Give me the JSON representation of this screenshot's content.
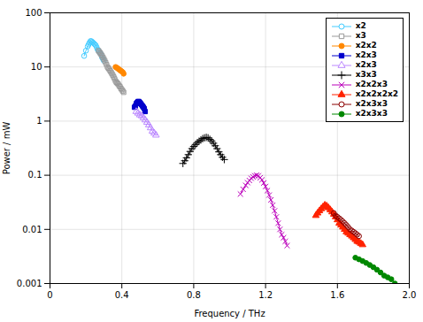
{
  "chart_data": {
    "type": "line",
    "xlabel": "Frequency / THz",
    "ylabel": "Power / mW",
    "log": "y",
    "grid": true,
    "legend": "upper right",
    "xlim": [
      0,
      2.0
    ],
    "xticks": [
      0,
      0.4,
      0.8,
      1.2,
      1.6,
      {
        "value": 2.0,
        "label": "2.0"
      }
    ],
    "ylim": [
      0.001,
      100
    ],
    "yticks": [
      0.001,
      0.01,
      0.1,
      1,
      10,
      100
    ],
    "series": [
      {
        "name": "x2",
        "color": "#44CCFF",
        "marker": "circle-open",
        "line_style": "solid",
        "x": [
          0.19,
          0.2,
          0.21,
          0.215,
          0.22,
          0.225,
          0.23,
          0.235,
          0.24,
          0.245,
          0.25,
          0.255,
          0.26,
          0.265,
          0.27,
          0.275,
          0.28,
          0.285,
          0.29,
          0.295,
          0.3
        ],
        "values": [
          16,
          20,
          24,
          26,
          28,
          30,
          30,
          29,
          28,
          27,
          26,
          25,
          23,
          21,
          20,
          19,
          18,
          17,
          15,
          14,
          13
        ]
      },
      {
        "name": "x3",
        "color": "#999999",
        "marker": "square-open",
        "line_style": "solid",
        "x": [
          0.27,
          0.275,
          0.28,
          0.285,
          0.29,
          0.295,
          0.3,
          0.305,
          0.31,
          0.315,
          0.32,
          0.325,
          0.33,
          0.335,
          0.34,
          0.345,
          0.35,
          0.355,
          0.36,
          0.365,
          0.37,
          0.375,
          0.38,
          0.385,
          0.39,
          0.395,
          0.4,
          0.405,
          0.41
        ],
        "values": [
          20,
          19,
          18,
          17,
          16,
          15,
          14,
          13,
          12,
          11,
          10,
          9.5,
          9,
          8.5,
          8,
          7.5,
          7,
          6.5,
          6,
          5.5,
          5.2,
          5.0,
          4.8,
          4.5,
          4.3,
          4.0,
          3.8,
          3.6,
          3.4
        ]
      },
      {
        "name": "x2x2",
        "color": "#FF8800",
        "marker": "circle",
        "line_style": "solid",
        "x": [
          0.365,
          0.37,
          0.375,
          0.38,
          0.385,
          0.39,
          0.395,
          0.4,
          0.405,
          0.41
        ],
        "values": [
          10,
          9.8,
          9.5,
          9.2,
          9.0,
          8.7,
          8.5,
          8.2,
          8.0,
          7.5
        ]
      },
      {
        "name": "x2x3",
        "color": "#0000CC",
        "marker": "square",
        "line_style": "solid",
        "x": [
          0.47,
          0.475,
          0.48,
          0.485,
          0.49,
          0.495,
          0.5,
          0.505,
          0.51,
          0.515,
          0.52,
          0.525,
          0.53
        ],
        "values": [
          1.8,
          1.9,
          2.1,
          2.2,
          2.3,
          2.3,
          2.2,
          2.1,
          2.0,
          1.9,
          1.8,
          1.7,
          1.5
        ]
      },
      {
        "name": "x2x3",
        "color": "#BB88FF",
        "marker": "triangle-open",
        "line_style": "solid",
        "x": [
          0.48,
          0.49,
          0.5,
          0.51,
          0.52,
          0.53,
          0.54,
          0.55,
          0.56,
          0.57,
          0.58,
          0.59
        ],
        "values": [
          1.5,
          1.4,
          1.3,
          1.25,
          1.15,
          1.05,
          0.95,
          0.85,
          0.75,
          0.65,
          0.6,
          0.55
        ]
      },
      {
        "name": "x3x3",
        "color": "#000000",
        "marker": "plus",
        "line_style": "solid",
        "x": [
          0.74,
          0.75,
          0.76,
          0.77,
          0.78,
          0.79,
          0.8,
          0.81,
          0.82,
          0.83,
          0.84,
          0.85,
          0.86,
          0.87,
          0.88,
          0.89,
          0.9,
          0.91,
          0.92,
          0.93,
          0.94,
          0.95,
          0.96,
          0.97
        ],
        "values": [
          0.165,
          0.185,
          0.21,
          0.24,
          0.275,
          0.31,
          0.34,
          0.37,
          0.4,
          0.425,
          0.45,
          0.475,
          0.49,
          0.5,
          0.49,
          0.46,
          0.43,
          0.39,
          0.35,
          0.31,
          0.27,
          0.24,
          0.215,
          0.195
        ]
      },
      {
        "name": "x2x2x3",
        "color": "#BB00BB",
        "marker": "times",
        "line_style": "solid",
        "x": [
          1.06,
          1.075,
          1.09,
          1.1,
          1.11,
          1.12,
          1.13,
          1.14,
          1.15,
          1.16,
          1.17,
          1.18,
          1.19,
          1.2,
          1.21,
          1.22,
          1.23,
          1.24,
          1.25,
          1.26,
          1.27,
          1.28,
          1.29,
          1.3,
          1.31,
          1.32
        ],
        "values": [
          0.045,
          0.055,
          0.065,
          0.073,
          0.08,
          0.088,
          0.093,
          0.098,
          0.1,
          0.098,
          0.09,
          0.082,
          0.072,
          0.062,
          0.052,
          0.043,
          0.035,
          0.028,
          0.022,
          0.017,
          0.013,
          0.01,
          0.008,
          0.007,
          0.006,
          0.005
        ]
      },
      {
        "name": "x2x2x2x2",
        "color": "#FF2200",
        "marker": "triangle",
        "line_style": "solid",
        "x": [
          1.48,
          1.49,
          1.5,
          1.51,
          1.52,
          1.53,
          1.54,
          1.55,
          1.56,
          1.57,
          1.58,
          1.59,
          1.6,
          1.61,
          1.62,
          1.63,
          1.64,
          1.65,
          1.66,
          1.67,
          1.68,
          1.69,
          1.7,
          1.71,
          1.72,
          1.73,
          1.74
        ],
        "values": [
          0.018,
          0.02,
          0.022,
          0.024,
          0.026,
          0.028,
          0.027,
          0.025,
          0.023,
          0.021,
          0.019,
          0.017,
          0.015,
          0.013,
          0.012,
          0.011,
          0.01,
          0.009,
          0.0085,
          0.008,
          0.0075,
          0.007,
          0.0065,
          0.006,
          0.0058,
          0.0055,
          0.0052
        ]
      },
      {
        "name": "x2x3x3",
        "color": "#8B0000",
        "marker": "circle-open",
        "line_style": "solid",
        "x": [
          1.58,
          1.59,
          1.6,
          1.61,
          1.62,
          1.63,
          1.64,
          1.65,
          1.66,
          1.67,
          1.68,
          1.69,
          1.7,
          1.71,
          1.72
        ],
        "values": [
          0.02,
          0.018,
          0.017,
          0.016,
          0.015,
          0.014,
          0.013,
          0.012,
          0.011,
          0.01,
          0.0095,
          0.009,
          0.0085,
          0.008,
          0.0075
        ]
      },
      {
        "name": "x2x3x3",
        "color": "#008800",
        "marker": "circle",
        "line_style": "solid",
        "x": [
          1.7,
          1.72,
          1.74,
          1.76,
          1.78,
          1.8,
          1.82,
          1.84,
          1.86,
          1.88,
          1.9,
          1.92
        ],
        "values": [
          0.003,
          0.0028,
          0.0026,
          0.0024,
          0.0022,
          0.002,
          0.0018,
          0.0016,
          0.0014,
          0.0013,
          0.0012,
          0.001
        ]
      }
    ]
  }
}
